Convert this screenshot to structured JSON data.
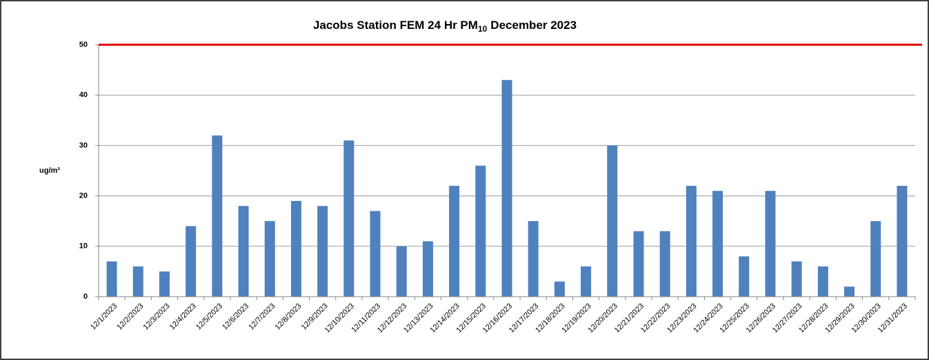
{
  "chart_data": {
    "type": "bar",
    "title": {
      "main": "Jacobs Station FEM 24 Hr PM",
      "subscript": "10",
      "rest": "December 2023"
    },
    "y_label": "ug/m³",
    "categories": [
      "12/1/2023",
      "12/2/2023",
      "12/3/2023",
      "12/4/2023",
      "12/5/2023",
      "12/6/2023",
      "12/7/2023",
      "12/8/2023",
      "12/9/2023",
      "12/10/2023",
      "12/11/2023",
      "12/12/2023",
      "12/13/2023",
      "12/14/2023",
      "12/15/2023",
      "12/16/2023",
      "12/17/2023",
      "12/18/2023",
      "12/19/2023",
      "12/20/2023",
      "12/21/2023",
      "12/22/2023",
      "12/23/2023",
      "12/24/2023",
      "12/25/2023",
      "12/26/2023",
      "12/27/2023",
      "12/28/2023",
      "12/29/2023",
      "12/30/2023",
      "12/31/2023"
    ],
    "values": [
      7,
      6,
      5,
      14,
      32,
      18,
      15,
      19,
      18,
      31,
      17,
      10,
      11,
      22,
      26,
      43,
      15,
      3,
      6,
      30,
      13,
      13,
      22,
      21,
      8,
      21,
      7,
      6,
      2,
      15,
      22
    ],
    "color": "#4f81bd",
    "threshold": 50,
    "threshold_color": "#e00000",
    "ylim": [
      0,
      50
    ],
    "yticks": [
      0,
      10,
      20,
      30,
      40,
      50
    ],
    "grid": true
  }
}
